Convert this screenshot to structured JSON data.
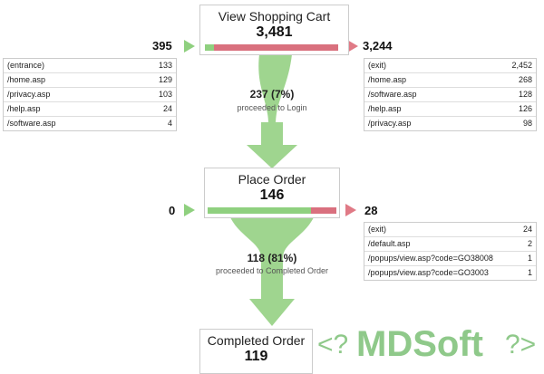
{
  "steps": [
    {
      "title": "View Shopping Cart",
      "value": "3,481",
      "entrances": "395",
      "exits": "3,244",
      "entrance_sources": [
        [
          "(entrance)",
          "133"
        ],
        [
          "/home.asp",
          "129"
        ],
        [
          "/privacy.asp",
          "103"
        ],
        [
          "/help.asp",
          "24"
        ],
        [
          "/software.asp",
          "4"
        ]
      ],
      "exit_destinations": [
        [
          "(exit)",
          "2,452"
        ],
        [
          "/home.asp",
          "268"
        ],
        [
          "/software.asp",
          "128"
        ],
        [
          "/help.asp",
          "126"
        ],
        [
          "/privacy.asp",
          "98"
        ]
      ],
      "proceeded": "237 (7%)",
      "proceeded_label": "proceeded to Login"
    },
    {
      "title": "Place Order",
      "value": "146",
      "entrances": "0",
      "exits": "28",
      "exit_destinations": [
        [
          "(exit)",
          "24"
        ],
        [
          "/default.asp",
          "2"
        ],
        [
          "/popups/view.asp?code=GO38008",
          "1"
        ],
        [
          "/popups/view.asp?code=GO3003",
          "1"
        ]
      ],
      "proceeded": "118 (81%)",
      "proceeded_label": "proceeded to Completed Order"
    },
    {
      "title": "Completed Order",
      "value": "119"
    }
  ],
  "watermark": [
    "<?",
    "MDSoft",
    "?>"
  ]
}
